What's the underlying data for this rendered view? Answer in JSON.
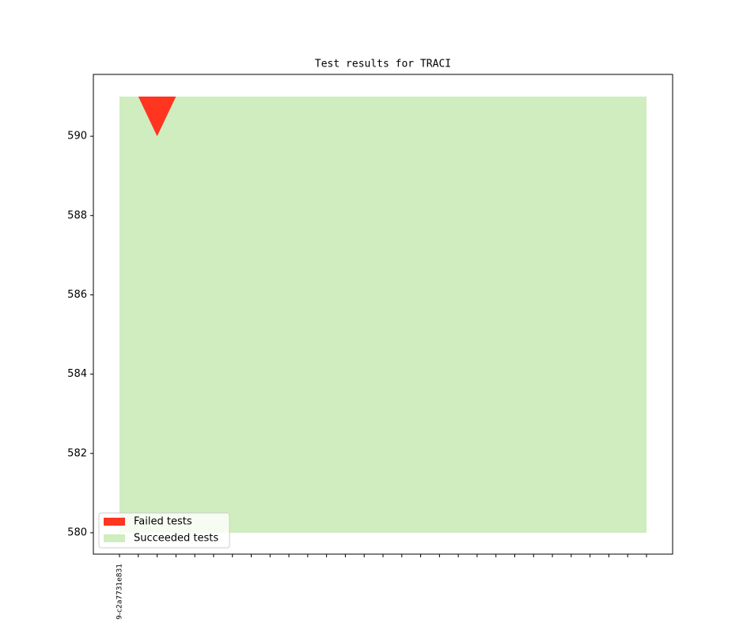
{
  "chart_data": {
    "type": "area",
    "title": "Test results for TRACI",
    "categories": [
      "9-c2a7731e831",
      null,
      null,
      null,
      null,
      null,
      null,
      null,
      null,
      null,
      null,
      null,
      null,
      null,
      null,
      null,
      null,
      null,
      null,
      null,
      null,
      null,
      null,
      null,
      null,
      null,
      null,
      null,
      null
    ],
    "series": [
      {
        "name": "Failed tests",
        "color": "#ff3520",
        "values": [
          0,
          0,
          1,
          0,
          0,
          0,
          0,
          0,
          0,
          0,
          0,
          0,
          0,
          0,
          0,
          0,
          0,
          0,
          0,
          0,
          0,
          0,
          0,
          0,
          0,
          0,
          0,
          0,
          0
        ]
      },
      {
        "name": "Succeeded tests",
        "color": "#cfedbf",
        "values": [
          591,
          591,
          590,
          591,
          591,
          591,
          591,
          591,
          591,
          591,
          591,
          591,
          591,
          591,
          591,
          591,
          591,
          591,
          591,
          591,
          591,
          591,
          591,
          591,
          591,
          591,
          591,
          591,
          591
        ]
      }
    ],
    "fill_from": 580,
    "ylim": [
      579.46,
      591.56
    ],
    "yticks": [
      580,
      582,
      584,
      586,
      588,
      590
    ],
    "legend": "lower left"
  }
}
